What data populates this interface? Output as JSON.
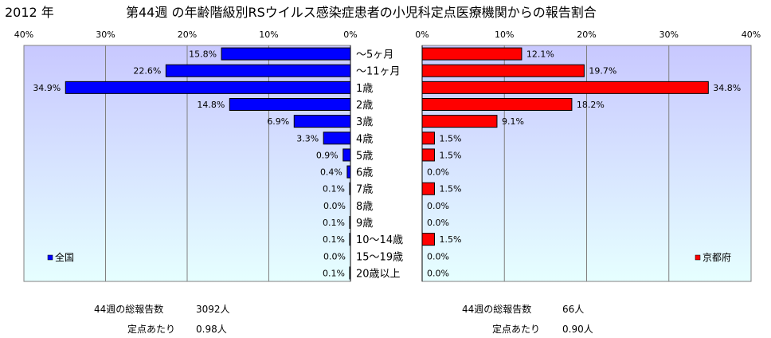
{
  "header": {
    "year": "2012 年",
    "title": "第44週 の年齢階級別RSウイルス感染症患者の小児科定点医療機関からの報告割合"
  },
  "colors": {
    "national_bar": "#0000ff",
    "kyoto_bar": "#ff0000",
    "plot_gradient_top": "#c8c8ff",
    "plot_gradient_bottom": "#e6ffff",
    "gridline": "#808080"
  },
  "chart_data": [
    {
      "type": "bar",
      "orientation": "horizontal",
      "direction": "right-to-left",
      "legend": "全国",
      "legend_position": "bottom-left",
      "grid": true,
      "xlim": [
        0,
        40
      ],
      "ticks": [
        "40%",
        "30%",
        "20%",
        "10%",
        "0%"
      ],
      "tick_values": [
        40,
        30,
        20,
        10,
        0
      ],
      "categories": [
        "～5ヶ月",
        "～11ヶ月",
        "1歳",
        "2歳",
        "3歳",
        "4歳",
        "5歳",
        "6歳",
        "7歳",
        "8歳",
        "9歳",
        "10～14歳",
        "15～19歳",
        "20歳以上"
      ],
      "values": [
        15.8,
        22.6,
        34.9,
        14.8,
        6.9,
        3.3,
        0.9,
        0.4,
        0.1,
        0.0,
        0.1,
        0.1,
        0.0,
        0.1
      ],
      "labels": [
        "15.8%",
        "22.6%",
        "34.9%",
        "14.8%",
        "6.9%",
        "3.3%",
        "0.9%",
        "0.4%",
        "0.1%",
        "0.0%",
        "0.1%",
        "0.1%",
        "0.0%",
        "0.1%"
      ]
    },
    {
      "type": "bar",
      "orientation": "horizontal",
      "direction": "left-to-right",
      "legend": "京都府",
      "legend_position": "bottom-right",
      "grid": true,
      "xlim": [
        0,
        40
      ],
      "ticks": [
        "0%",
        "10%",
        "20%",
        "30%",
        "40%"
      ],
      "tick_values": [
        0,
        10,
        20,
        30,
        40
      ],
      "categories": [
        "～5ヶ月",
        "～11ヶ月",
        "1歳",
        "2歳",
        "3歳",
        "4歳",
        "5歳",
        "6歳",
        "7歳",
        "8歳",
        "9歳",
        "10～14歳",
        "15～19歳",
        "20歳以上"
      ],
      "values": [
        12.1,
        19.7,
        34.8,
        18.2,
        9.1,
        1.5,
        1.5,
        0.0,
        1.5,
        0.0,
        0.0,
        1.5,
        0.0,
        0.0
      ],
      "labels": [
        "12.1%",
        "19.7%",
        "34.8%",
        "18.2%",
        "9.1%",
        "1.5%",
        "1.5%",
        "0.0%",
        "1.5%",
        "0.0%",
        "0.0%",
        "1.5%",
        "0.0%",
        "0.0%"
      ]
    }
  ],
  "stats": {
    "national": {
      "total_label": "44週の総報告数",
      "total_value": "3092人",
      "per_site_label": "定点あたり",
      "per_site_value": "0.98人"
    },
    "kyoto": {
      "total_label": "44週の総報告数",
      "total_value": "66人",
      "per_site_label": "定点あたり",
      "per_site_value": "0.90人"
    }
  }
}
